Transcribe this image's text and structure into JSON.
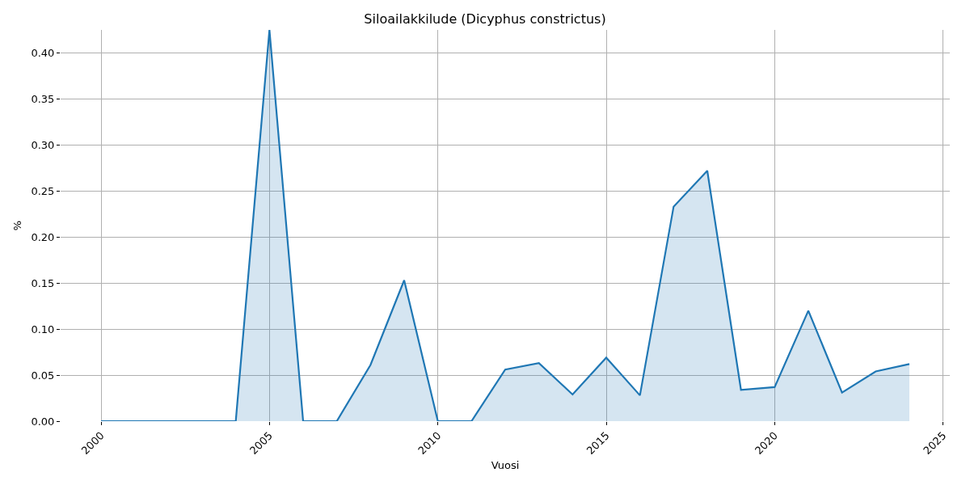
{
  "chart_data": {
    "type": "area",
    "title": "Siloailakkilude (Dicyphus constrictus)",
    "xlabel": "Vuosi",
    "ylabel": "%",
    "x": [
      2000,
      2001,
      2002,
      2003,
      2004,
      2005,
      2006,
      2007,
      2008,
      2009,
      2010,
      2011,
      2012,
      2013,
      2014,
      2015,
      2016,
      2017,
      2018,
      2019,
      2020,
      2021,
      2022,
      2023,
      2024
    ],
    "series": [
      {
        "color": "#1f77b4",
        "values": [
          0,
          0,
          0,
          0,
          0,
          0.425,
          0,
          0,
          0.061,
          0.153,
          0,
          0,
          0.056,
          0.063,
          0.029,
          0.069,
          0.028,
          0.233,
          0.272,
          0.034,
          0.037,
          0.12,
          0.031,
          0.054,
          0.062
        ]
      }
    ],
    "xlim": [
      1998.8,
      2025.2
    ],
    "xticks": [
      2000,
      2005,
      2010,
      2015,
      2020,
      2025
    ],
    "ylim": [
      0,
      0.425
    ],
    "yticks": [
      {
        "value": 0,
        "label": "0.00"
      },
      {
        "value": 0.05,
        "label": "0.05"
      },
      {
        "value": 0.1,
        "label": "0.10"
      },
      {
        "value": 0.15,
        "label": "0.15"
      },
      {
        "value": 0.2,
        "label": "0.20"
      },
      {
        "value": 0.25,
        "label": "0.25"
      },
      {
        "value": 0.3,
        "label": "0.30"
      },
      {
        "value": 0.35,
        "label": "0.35"
      },
      {
        "value": 0.4,
        "label": "0.40"
      }
    ],
    "grid": true,
    "marker": "none",
    "line_style": "solid"
  }
}
